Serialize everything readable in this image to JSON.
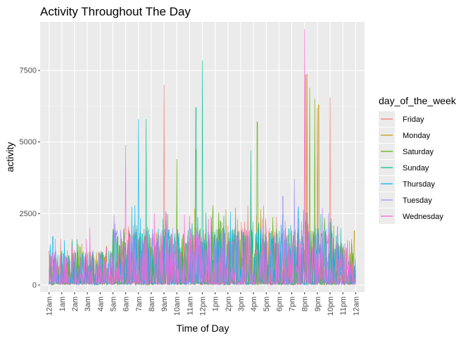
{
  "chart_data": {
    "type": "line",
    "title": "Activity Throughout The Day",
    "xlabel": "Time of Day",
    "ylabel": "activity",
    "x_ticks": [
      "12am",
      "1am",
      "2am",
      "3am",
      "4am",
      "5am",
      "6am",
      "7am",
      "8am",
      "9am",
      "10am",
      "11am",
      "12pm",
      "1pm",
      "2pm",
      "3pm",
      "4pm",
      "5pm",
      "6pm",
      "7pm",
      "8pm",
      "9pm",
      "10pm",
      "11pm",
      "12am"
    ],
    "x_tick_rotation": 90,
    "y_ticks": [
      0,
      2500,
      5000,
      7500
    ],
    "y_tick_labels": [
      "0",
      "2500",
      "5000",
      "7500"
    ],
    "ylim": [
      -250,
      9200
    ],
    "xlim_hours": [
      -0.7,
      24.7
    ],
    "grid": true,
    "legend": {
      "title": "day_of_the_week",
      "placement": "right",
      "entries": [
        "Friday",
        "Monday",
        "Saturday",
        "Sunday",
        "Thursday",
        "Tuesday",
        "Wednesday"
      ]
    },
    "colors": {
      "Friday": "#F8766D",
      "Monday": "#C49A00",
      "Saturday": "#53B400",
      "Sunday": "#00C094",
      "Thursday": "#00B6EB",
      "Tuesday": "#A58AFF",
      "Wednesday": "#FB61D7"
    },
    "panel_background": "#EBEBEB",
    "series_summary": [
      {
        "name": "Friday",
        "peaks": [
          {
            "hour": 9.0,
            "value": 7000
          },
          {
            "hour": 20.2,
            "value": 7400
          },
          {
            "hour": 21.0,
            "value": 6200
          },
          {
            "hour": 22.0,
            "value": 6550
          }
        ]
      },
      {
        "name": "Monday",
        "peaks": [
          {
            "hour": 20.1,
            "value": 7350
          },
          {
            "hour": 21.1,
            "value": 6300
          },
          {
            "hour": 23.9,
            "value": 1900
          }
        ]
      },
      {
        "name": "Saturday",
        "peaks": [
          {
            "hour": 10.0,
            "value": 4400
          },
          {
            "hour": 11.5,
            "value": 4750
          },
          {
            "hour": 16.3,
            "value": 5700
          },
          {
            "hour": 20.4,
            "value": 6900
          },
          {
            "hour": 20.8,
            "value": 6500
          }
        ]
      },
      {
        "name": "Sunday",
        "peaks": [
          {
            "hour": 11.5,
            "value": 6200
          },
          {
            "hour": 12.0,
            "value": 7850
          },
          {
            "hour": 7.6,
            "value": 5800
          },
          {
            "hour": 15.8,
            "value": 4700
          }
        ]
      },
      {
        "name": "Thursday",
        "peaks": [
          {
            "hour": 7.0,
            "value": 5800
          },
          {
            "hour": 0.3,
            "value": 1700
          }
        ]
      },
      {
        "name": "Tuesday",
        "peaks": [
          {
            "hour": 19.2,
            "value": 3700
          },
          {
            "hour": 18.3,
            "value": 3100
          }
        ]
      },
      {
        "name": "Wednesday",
        "peaks": [
          {
            "hour": 6.0,
            "value": 4900
          },
          {
            "hour": 20.0,
            "value": 8950
          },
          {
            "hour": 3.2,
            "value": 2000
          }
        ]
      }
    ],
    "baseline_activity": {
      "night_hours": [
        0,
        5
      ],
      "night_typical_max": 1200,
      "day_hours": [
        6,
        23
      ],
      "day_typical_max": 2000
    }
  }
}
